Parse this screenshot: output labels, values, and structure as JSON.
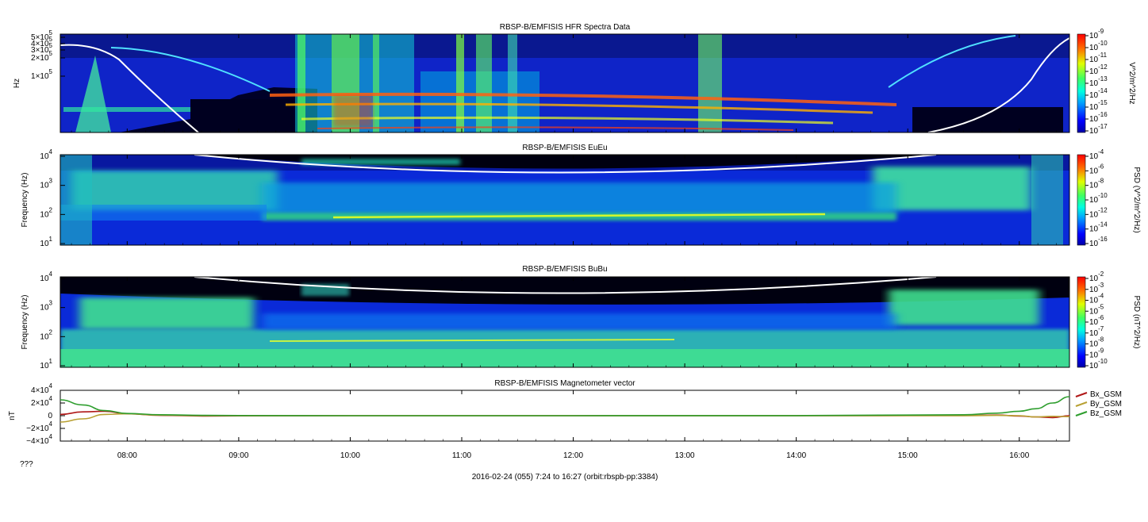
{
  "page": {
    "footer_left": "???",
    "footer_center": "2016-02-24 (055) 7:24 to 16:27 (orbit:rbspb-pp:3384)"
  },
  "time_axis": {
    "start_hour": 7.4,
    "end_hour": 16.45,
    "tick_hours": [
      8,
      9,
      10,
      11,
      12,
      13,
      14,
      15,
      16
    ],
    "tick_labels": [
      "08:00",
      "09:00",
      "10:00",
      "11:00",
      "12:00",
      "13:00",
      "14:00",
      "15:00",
      "16:00"
    ]
  },
  "chart_data": [
    {
      "type": "heatmap",
      "title": "RBSP-B/EMFISIS  HFR Spectra Data",
      "ylabel": "Hz",
      "yticks": [
        {
          "label": "5×10",
          "exp": "5"
        },
        {
          "label": "4×10",
          "exp": "5"
        },
        {
          "label": "3×10",
          "exp": "5"
        },
        {
          "label": "2×10",
          "exp": "5"
        },
        {
          "label": "10",
          "exp": "5",
          "prefix": "1×"
        }
      ],
      "colorbar_label": "V^2/m^2/Hz",
      "colorbar_ticks": [
        {
          "label": "10",
          "exp": "-9"
        },
        {
          "label": "10",
          "exp": "-10"
        },
        {
          "label": "10",
          "exp": "-11"
        },
        {
          "label": "10",
          "exp": "-12"
        },
        {
          "label": "10",
          "exp": "-13"
        },
        {
          "label": "10",
          "exp": "-14"
        },
        {
          "label": "10",
          "exp": "-15"
        },
        {
          "label": "10",
          "exp": "-16"
        },
        {
          "label": "10",
          "exp": "-17"
        }
      ]
    },
    {
      "type": "heatmap",
      "title": "RBSP-B/EMFISIS  EuEu",
      "ylabel": "Frequency (Hz)",
      "yticks": [
        {
          "label": "10",
          "exp": "4"
        },
        {
          "label": "10",
          "exp": "3"
        },
        {
          "label": "10",
          "exp": "2"
        },
        {
          "label": "10",
          "exp": "1"
        }
      ],
      "colorbar_label": "PSD (V^2/m^2/Hz)",
      "colorbar_ticks": [
        {
          "label": "10",
          "exp": "-4"
        },
        {
          "label": "10",
          "exp": "-6"
        },
        {
          "label": "10",
          "exp": "-8"
        },
        {
          "label": "10",
          "exp": "-10"
        },
        {
          "label": "10",
          "exp": "-12"
        },
        {
          "label": "10",
          "exp": "-14"
        },
        {
          "label": "10",
          "exp": "-16"
        }
      ]
    },
    {
      "type": "heatmap",
      "title": "RBSP-B/EMFISIS  BuBu",
      "ylabel": "Frequency (Hz)",
      "yticks": [
        {
          "label": "10",
          "exp": "4"
        },
        {
          "label": "10",
          "exp": "3"
        },
        {
          "label": "10",
          "exp": "2"
        },
        {
          "label": "10",
          "exp": "1"
        }
      ],
      "colorbar_label": "PSD (nT^2/Hz)",
      "colorbar_ticks": [
        {
          "label": "10",
          "exp": "-2"
        },
        {
          "label": "10",
          "exp": "-3"
        },
        {
          "label": "10",
          "exp": "-4"
        },
        {
          "label": "10",
          "exp": "-5"
        },
        {
          "label": "10",
          "exp": "-6"
        },
        {
          "label": "10",
          "exp": "-7"
        },
        {
          "label": "10",
          "exp": "-8"
        },
        {
          "label": "10",
          "exp": "-9"
        },
        {
          "label": "10",
          "exp": "-10"
        }
      ]
    },
    {
      "type": "line",
      "title": "RBSP-B/EMFISIS  Magnetometer vector",
      "ylabel": "nT",
      "ylim": [
        -40000,
        40000
      ],
      "yticks": [
        {
          "label": "4×10",
          "exp": "4"
        },
        {
          "label": "2×10",
          "exp": "4"
        },
        {
          "label": "0",
          "exp": ""
        },
        {
          "label": "−2×10",
          "exp": "4"
        },
        {
          "label": "−4×10",
          "exp": "4"
        }
      ],
      "x": [
        7.4,
        7.6,
        7.8,
        8.0,
        8.3,
        8.7,
        9.0,
        10.0,
        12.0,
        14.0,
        15.5,
        15.8,
        16.0,
        16.15,
        16.3,
        16.45
      ],
      "series": [
        {
          "name": "Bx_GSM",
          "color": "#b01818",
          "values": [
            2000,
            6000,
            7000,
            3000,
            500,
            -500,
            -300,
            0,
            0,
            0,
            300,
            1000,
            -500,
            -2000,
            -3000,
            0
          ]
        },
        {
          "name": "By_GSM",
          "color": "#b8a032",
          "values": [
            -10000,
            -5000,
            2000,
            3000,
            1000,
            0,
            0,
            0,
            0,
            0,
            0,
            500,
            0,
            -2000,
            -1000,
            -1500
          ]
        },
        {
          "name": "Bz_GSM",
          "color": "#2e9e2e",
          "values": [
            25000,
            17000,
            8000,
            3500,
            1500,
            500,
            200,
            0,
            0,
            100,
            1500,
            4000,
            7000,
            11000,
            20000,
            30000
          ]
        }
      ]
    }
  ]
}
